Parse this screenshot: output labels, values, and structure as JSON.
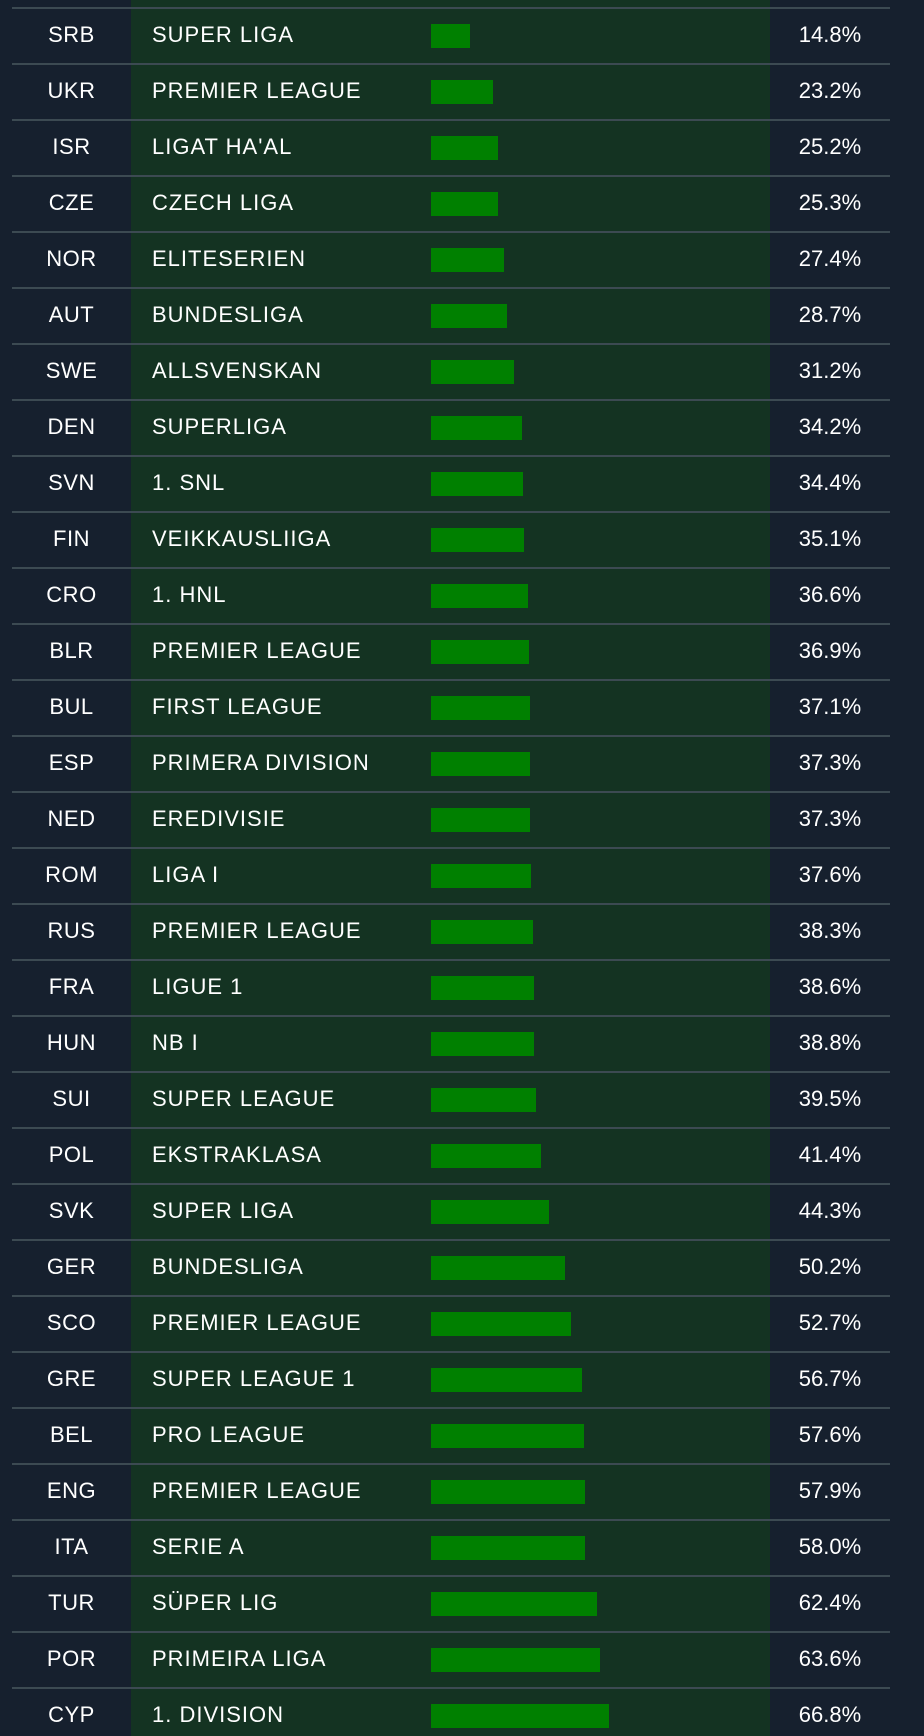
{
  "table": {
    "rows": [
      {
        "code": "SRB",
        "league": "SUPER LIGA",
        "value": 14.8,
        "pct_label": "14.8%"
      },
      {
        "code": "UKR",
        "league": "PREMIER LEAGUE",
        "value": 23.2,
        "pct_label": "23.2%"
      },
      {
        "code": "ISR",
        "league": "LIGAT HA'AL",
        "value": 25.2,
        "pct_label": "25.2%"
      },
      {
        "code": "CZE",
        "league": "CZECH LIGA",
        "value": 25.3,
        "pct_label": "25.3%"
      },
      {
        "code": "NOR",
        "league": "ELITESERIEN",
        "value": 27.4,
        "pct_label": "27.4%"
      },
      {
        "code": "AUT",
        "league": "BUNDESLIGA",
        "value": 28.7,
        "pct_label": "28.7%"
      },
      {
        "code": "SWE",
        "league": "ALLSVENSKAN",
        "value": 31.2,
        "pct_label": "31.2%"
      },
      {
        "code": "DEN",
        "league": "SUPERLIGA",
        "value": 34.2,
        "pct_label": "34.2%"
      },
      {
        "code": "SVN",
        "league": "1. SNL",
        "value": 34.4,
        "pct_label": "34.4%"
      },
      {
        "code": "FIN",
        "league": "VEIKKAUSLIIGA",
        "value": 35.1,
        "pct_label": "35.1%"
      },
      {
        "code": "CRO",
        "league": "1. HNL",
        "value": 36.6,
        "pct_label": "36.6%"
      },
      {
        "code": "BLR",
        "league": "PREMIER LEAGUE",
        "value": 36.9,
        "pct_label": "36.9%"
      },
      {
        "code": "BUL",
        "league": "FIRST LEAGUE",
        "value": 37.1,
        "pct_label": "37.1%"
      },
      {
        "code": "ESP",
        "league": "PRIMERA DIVISION",
        "value": 37.3,
        "pct_label": "37.3%"
      },
      {
        "code": "NED",
        "league": "EREDIVISIE",
        "value": 37.3,
        "pct_label": "37.3%"
      },
      {
        "code": "ROM",
        "league": "LIGA I",
        "value": 37.6,
        "pct_label": "37.6%"
      },
      {
        "code": "RUS",
        "league": "PREMIER LEAGUE",
        "value": 38.3,
        "pct_label": "38.3%"
      },
      {
        "code": "FRA",
        "league": "LIGUE 1",
        "value": 38.6,
        "pct_label": "38.6%"
      },
      {
        "code": "HUN",
        "league": "NB I",
        "value": 38.8,
        "pct_label": "38.8%"
      },
      {
        "code": "SUI",
        "league": "SUPER LEAGUE",
        "value": 39.5,
        "pct_label": "39.5%"
      },
      {
        "code": "POL",
        "league": "EKSTRAKLASA",
        "value": 41.4,
        "pct_label": "41.4%"
      },
      {
        "code": "SVK",
        "league": "SUPER LIGA",
        "value": 44.3,
        "pct_label": "44.3%"
      },
      {
        "code": "GER",
        "league": "BUNDESLIGA",
        "value": 50.2,
        "pct_label": "50.2%"
      },
      {
        "code": "SCO",
        "league": "PREMIER LEAGUE",
        "value": 52.7,
        "pct_label": "52.7%"
      },
      {
        "code": "GRE",
        "league": "SUPER LEAGUE 1",
        "value": 56.7,
        "pct_label": "56.7%"
      },
      {
        "code": "BEL",
        "league": "PRO LEAGUE",
        "value": 57.6,
        "pct_label": "57.6%"
      },
      {
        "code": "ENG",
        "league": "PREMIER LEAGUE",
        "value": 57.9,
        "pct_label": "57.9%"
      },
      {
        "code": "ITA",
        "league": "SERIE A",
        "value": 58.0,
        "pct_label": "58.0%"
      },
      {
        "code": "TUR",
        "league": "SÜPER LIG",
        "value": 62.4,
        "pct_label": "62.4%"
      },
      {
        "code": "POR",
        "league": "PRIMEIRA LIGA",
        "value": 63.6,
        "pct_label": "63.6%"
      },
      {
        "code": "CYP",
        "league": "1. DIVISION",
        "value": 66.8,
        "pct_label": "66.8%"
      }
    ]
  },
  "colors": {
    "background": "#16202e",
    "column_highlight": "#143322",
    "bar": "#008000",
    "separator": "#3c4a52",
    "text": "#ffffff"
  }
}
